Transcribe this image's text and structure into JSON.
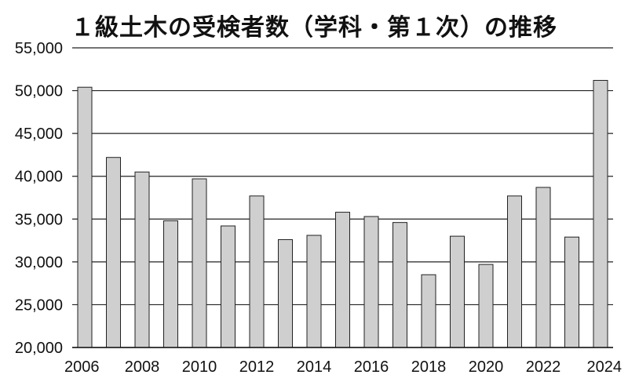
{
  "chart_data": {
    "type": "bar",
    "title": "１級土木の受検者数（学科・第１次）の推移",
    "xlabel": "",
    "ylabel": "",
    "categories": [
      "2006",
      "2007",
      "2008",
      "2009",
      "2010",
      "2011",
      "2012",
      "2013",
      "2014",
      "2015",
      "2016",
      "2017",
      "2018",
      "2019",
      "2020",
      "2021",
      "2022",
      "2023",
      "2024"
    ],
    "x_tick_labels": [
      "2006",
      "2008",
      "2010",
      "2012",
      "2014",
      "2016",
      "2018",
      "2020",
      "2022",
      "2024"
    ],
    "y_tick_labels": [
      "20,000",
      "25,000",
      "30,000",
      "35,000",
      "40,000",
      "45,000",
      "50,000",
      "55,000"
    ],
    "values": [
      50400,
      42200,
      40500,
      34800,
      39700,
      34200,
      37700,
      32600,
      33100,
      35800,
      35300,
      34600,
      28500,
      33000,
      29700,
      37700,
      38700,
      32900,
      51200
    ],
    "ylim": [
      20000,
      55000
    ],
    "grid": true,
    "bar_color": "#cfcfcf",
    "bar_edge_color": "#222222"
  }
}
